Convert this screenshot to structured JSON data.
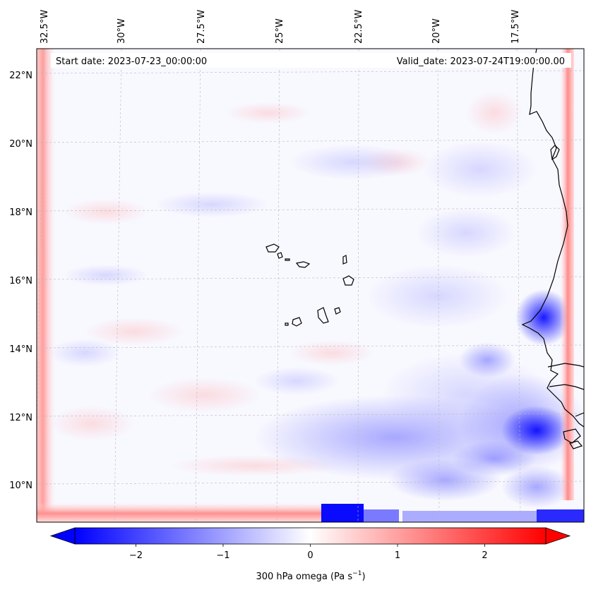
{
  "map": {
    "start_date_label": "Start date: 2023-07-23_00:00:00",
    "valid_date_label": "Valid_date: 2023-07-24T19:00:00.00",
    "lon_ticks": [
      "32.5°W",
      "30°W",
      "27.5°W",
      "25°W",
      "22.5°W",
      "20°W",
      "17.5°W"
    ],
    "lat_ticks": [
      "22°N",
      "20°N",
      "18°N",
      "16°N",
      "14°N",
      "12°N",
      "10°N"
    ],
    "field": "300 hPa omega",
    "colormap": "bwr",
    "colors": {
      "negative": "#0000ff",
      "zero": "#ffffff",
      "positive": "#ff0000",
      "coast": "#000000",
      "grid": "#c0c0c0"
    }
  },
  "colorbar": {
    "label_prefix": "300 hPa omega (Pa s",
    "label_exp": "−1",
    "label_suffix": ")",
    "range": [
      -2.7,
      2.7
    ],
    "ticks": [
      "−2",
      "−1",
      "0",
      "1",
      "2"
    ],
    "tick_values": [
      -2,
      -1,
      0,
      1,
      2
    ],
    "extend": "both"
  }
}
